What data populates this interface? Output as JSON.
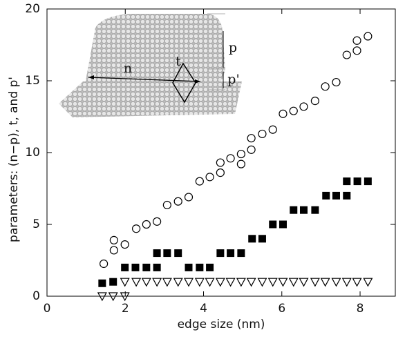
{
  "chart_data": {
    "type": "scatter",
    "xlabel": "edge size (nm)",
    "ylabel": "parameters: (n−p), t, and p'",
    "xlim": [
      0,
      8.9
    ],
    "ylim": [
      0,
      20
    ],
    "xticks": [
      0,
      2,
      4,
      6,
      8
    ],
    "yticks": [
      0,
      5,
      10,
      15,
      20
    ],
    "annotations": [
      "n",
      "t",
      "p",
      "p'"
    ],
    "series": [
      {
        "marker": "circle",
        "color": "#000000",
        "x": [
          1.45,
          1.71,
          1.71,
          1.99,
          2.28,
          2.54,
          2.81,
          3.07,
          3.35,
          3.62,
          3.9,
          4.16,
          4.43,
          4.43,
          4.69,
          4.96,
          4.96,
          5.22,
          5.22,
          5.5,
          5.77,
          6.03,
          6.3,
          6.56,
          6.85,
          7.11,
          7.39,
          7.66,
          7.92,
          7.92,
          8.2
        ],
        "values": [
          2.26,
          3.2,
          3.9,
          3.6,
          4.7,
          5.0,
          5.2,
          6.35,
          6.6,
          6.9,
          8.0,
          8.3,
          8.6,
          9.3,
          9.6,
          9.9,
          9.2,
          10.2,
          11.0,
          11.3,
          11.6,
          12.7,
          12.9,
          13.2,
          13.6,
          14.6,
          14.9,
          16.8,
          17.1,
          17.8,
          18.1
        ]
      },
      {
        "marker": "square",
        "color": "#000000",
        "x": [
          1.41,
          1.69,
          1.99,
          2.26,
          2.54,
          2.81,
          2.81,
          3.07,
          3.35,
          3.62,
          3.9,
          4.16,
          4.43,
          4.69,
          4.96,
          5.24,
          5.5,
          5.77,
          6.03,
          6.3,
          6.56,
          6.85,
          7.13,
          7.39,
          7.66,
          7.66,
          7.93,
          8.2
        ],
        "values": [
          0.9,
          1,
          2,
          2,
          2,
          2,
          3,
          3,
          3,
          2,
          2,
          2,
          3,
          3,
          3,
          4,
          4,
          5,
          5,
          6,
          6,
          6,
          7,
          7,
          7,
          8,
          8,
          8
        ]
      },
      {
        "marker": "triangle-down",
        "color": "#000000",
        "x": [
          1.41,
          1.69,
          1.99,
          1.99,
          2.28,
          2.54,
          2.81,
          3.07,
          3.35,
          3.62,
          3.9,
          4.16,
          4.43,
          4.69,
          4.96,
          5.22,
          5.5,
          5.77,
          6.03,
          6.3,
          6.56,
          6.85,
          7.11,
          7.39,
          7.66,
          7.92,
          8.2
        ],
        "values": [
          0,
          0,
          0,
          1,
          1,
          1,
          1,
          1,
          1,
          1,
          1,
          1,
          1,
          1,
          1,
          1,
          1,
          1,
          1,
          1,
          1,
          1,
          1,
          1,
          1,
          1,
          1
        ]
      }
    ]
  }
}
